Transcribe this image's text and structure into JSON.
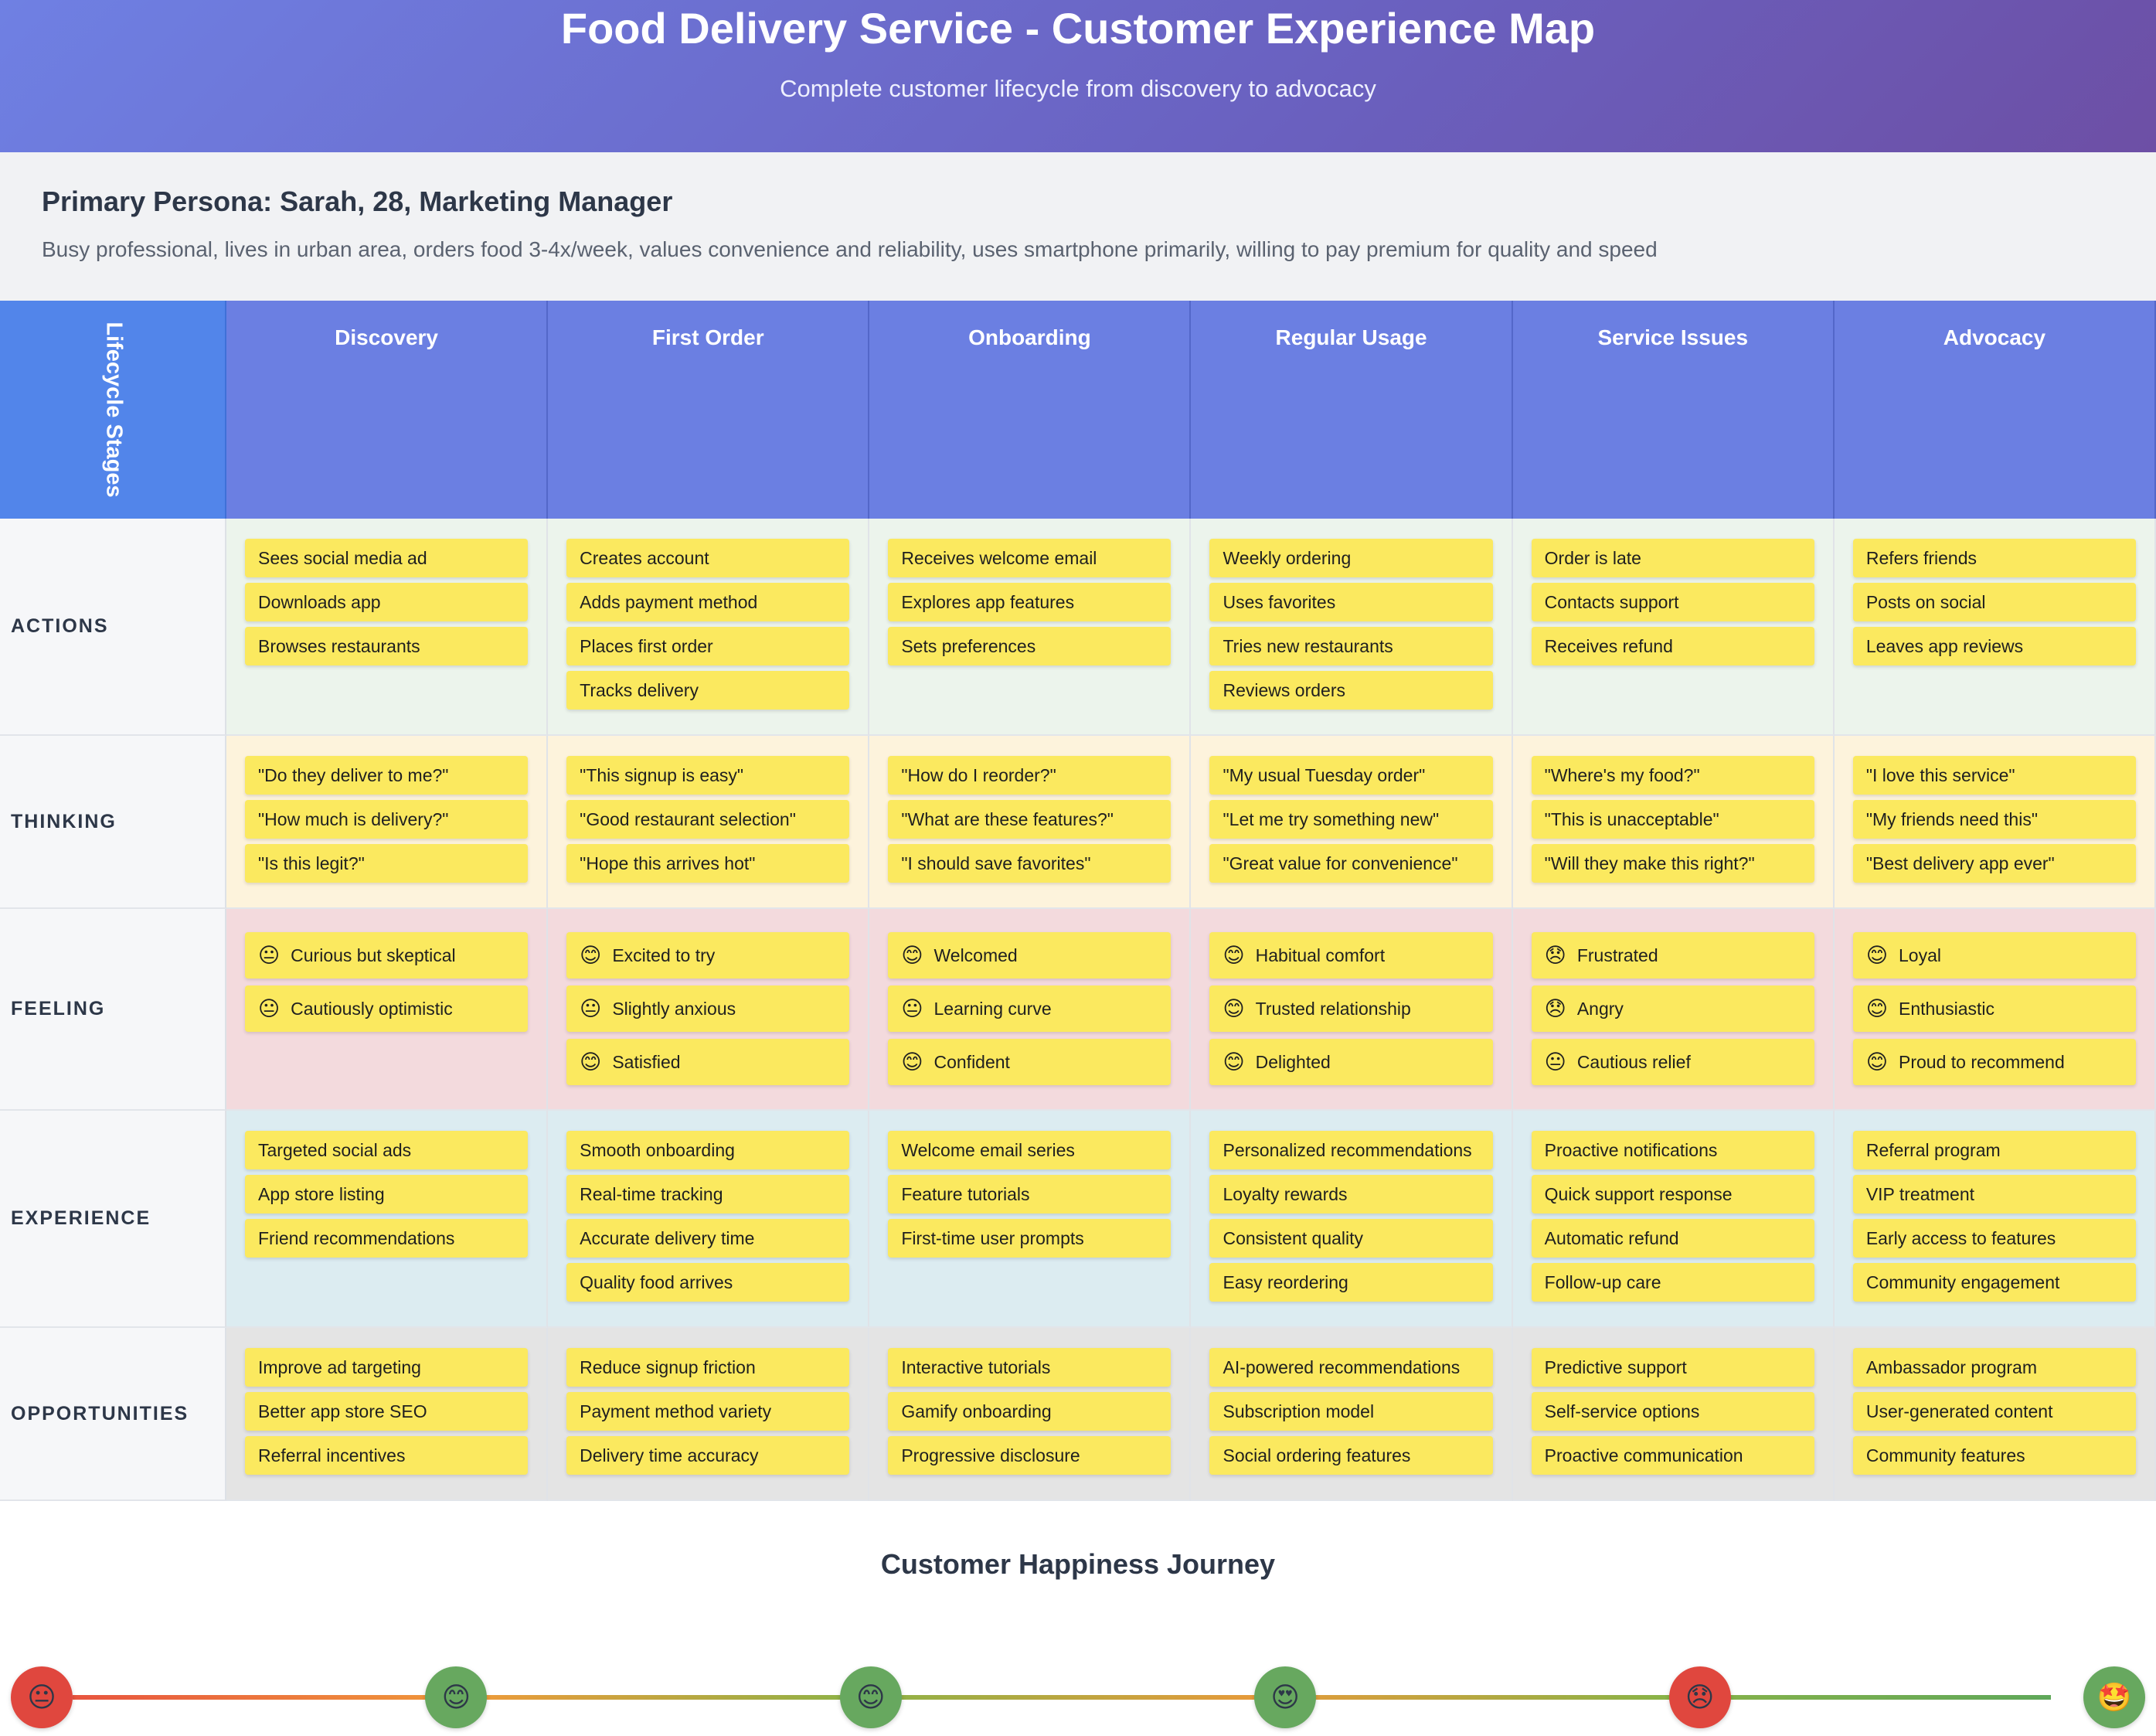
{
  "header": {
    "title": "Food Delivery Service - Customer Experience Map",
    "subtitle": "Complete customer lifecycle from discovery to advocacy"
  },
  "persona": {
    "title": "Primary Persona: Sarah, 28, Marketing Manager",
    "description": "Busy professional, lives in urban area, orders food 3-4x/week, values convenience and reliability, uses smartphone primarily, willing to pay premium for quality and speed"
  },
  "grid": {
    "corner_label": "Lifecycle Stages",
    "stages": [
      "Discovery",
      "First Order",
      "Onboarding",
      "Regular Usage",
      "Service Issues",
      "Advocacy"
    ],
    "row_labels": {
      "actions": "ACTIONS",
      "thinking": "THINKING",
      "feeling": "FEELING",
      "experience": "EXPERIENCE",
      "opportunities": "OPPORTUNITIES"
    },
    "actions": [
      [
        "Sees social media ad",
        "Downloads app",
        "Browses restaurants"
      ],
      [
        "Creates account",
        "Adds payment method",
        "Places first order",
        "Tracks delivery"
      ],
      [
        "Receives welcome email",
        "Explores app features",
        "Sets preferences"
      ],
      [
        "Weekly ordering",
        "Uses favorites",
        "Tries new restaurants",
        "Reviews orders"
      ],
      [
        "Order is late",
        "Contacts support",
        "Receives refund"
      ],
      [
        "Refers friends",
        "Posts on social",
        "Leaves app reviews"
      ]
    ],
    "thinking": [
      [
        "\"Do they deliver to me?\"",
        "\"How much is delivery?\"",
        "\"Is this legit?\""
      ],
      [
        "\"This signup is easy\"",
        "\"Good restaurant selection\"",
        "\"Hope this arrives hot\""
      ],
      [
        "\"How do I reorder?\"",
        "\"What are these features?\"",
        "\"I should save favorites\""
      ],
      [
        "\"My usual Tuesday order\"",
        "\"Let me try something new\"",
        "\"Great value for convenience\""
      ],
      [
        "\"Where's my food?\"",
        "\"This is unacceptable\"",
        "\"Will they make this right?\""
      ],
      [
        "\"I love this service\"",
        "\"My friends need this\"",
        "\"Best delivery app ever\""
      ]
    ],
    "feeling": [
      [
        {
          "emoji": "😐",
          "text": "Curious but skeptical"
        },
        {
          "emoji": "😐",
          "text": "Cautiously optimistic"
        }
      ],
      [
        {
          "emoji": "😊",
          "text": "Excited to try"
        },
        {
          "emoji": "😐",
          "text": "Slightly anxious"
        },
        {
          "emoji": "😊",
          "text": "Satisfied"
        }
      ],
      [
        {
          "emoji": "😊",
          "text": "Welcomed"
        },
        {
          "emoji": "😐",
          "text": "Learning curve"
        },
        {
          "emoji": "😊",
          "text": "Confident"
        }
      ],
      [
        {
          "emoji": "😊",
          "text": "Habitual comfort"
        },
        {
          "emoji": "😊",
          "text": "Trusted relationship"
        },
        {
          "emoji": "😊",
          "text": "Delighted"
        }
      ],
      [
        {
          "emoji": "😞",
          "text": "Frustrated"
        },
        {
          "emoji": "😞",
          "text": "Angry"
        },
        {
          "emoji": "😐",
          "text": "Cautious relief"
        }
      ],
      [
        {
          "emoji": "😊",
          "text": "Loyal"
        },
        {
          "emoji": "😊",
          "text": "Enthusiastic"
        },
        {
          "emoji": "😊",
          "text": "Proud to recommend"
        }
      ]
    ],
    "experience": [
      [
        "Targeted social ads",
        "App store listing",
        "Friend recommendations"
      ],
      [
        "Smooth onboarding",
        "Real-time tracking",
        "Accurate delivery time",
        "Quality food arrives"
      ],
      [
        "Welcome email series",
        "Feature tutorials",
        "First-time user prompts"
      ],
      [
        "Personalized recommendations",
        "Loyalty rewards",
        "Consistent quality",
        "Easy reordering"
      ],
      [
        "Proactive notifications",
        "Quick support response",
        "Automatic refund",
        "Follow-up care"
      ],
      [
        "Referral program",
        "VIP treatment",
        "Early access to features",
        "Community engagement"
      ]
    ],
    "opportunities": [
      [
        "Improve ad targeting",
        "Better app store SEO",
        "Referral incentives"
      ],
      [
        "Reduce signup friction",
        "Payment method variety",
        "Delivery time accuracy"
      ],
      [
        "Interactive tutorials",
        "Gamify onboarding",
        "Progressive disclosure"
      ],
      [
        "AI-powered recommendations",
        "Subscription model",
        "Social ordering features"
      ],
      [
        "Predictive support",
        "Self-service options",
        "Proactive communication"
      ],
      [
        "Ambassador program",
        "User-generated content",
        "Community features"
      ]
    ]
  },
  "happiness": {
    "title": "Customer Happiness Journey",
    "points": [
      {
        "emoji": "😐",
        "color": "#e0473e"
      },
      {
        "emoji": "😊",
        "color": "#67a85f"
      },
      {
        "emoji": "😊",
        "color": "#67a85f"
      },
      {
        "emoji": "😍",
        "color": "#67a85f"
      },
      {
        "emoji": "😞",
        "color": "#e0473e"
      },
      {
        "emoji": "🤩",
        "color": "#67a85f"
      }
    ]
  }
}
